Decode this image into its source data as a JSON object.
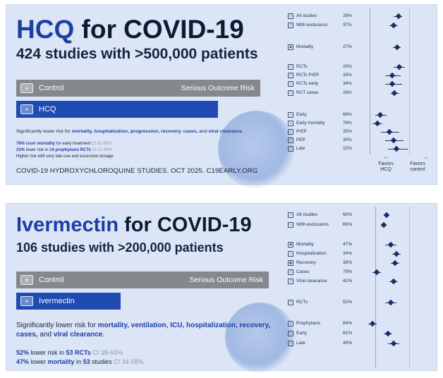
{
  "hcq_card": {
    "title_drug": "HCQ",
    "title_rest": "for COVID-19",
    "subtitle": "424 studies with >500,000 patients",
    "control_label": "Control",
    "drug_label": "HCQ",
    "risk_label": "Serious Outcome Risk",
    "sig_prefix": "Significantly lower risk for ",
    "sig_items": "mortality, hospitalization, progression, recovery, cases,",
    "sig_and": " and ",
    "sig_last": "viral clearance",
    "sig_end": ".",
    "stat1_pct": "76%",
    "stat1_text": " lower ",
    "stat1_bold": "mortality",
    "stat1_rest": " for early treatment ",
    "stat1_ci": "CI 61-85%",
    "stat2_pct": "33%",
    "stat2_text": " lower risk in ",
    "stat2_bold": "14 prophylaxis RCTs",
    "stat2_ci": " CI 12-49%",
    "stat3": "Higher risk with very late use and excessive dosage",
    "footer": "COVID-19 HYDROXYCHLOROQUINE STUDIES. OCT 2025. C19EARLY.ORG",
    "rows": [
      {
        "label": "All studies",
        "pct": "28%"
      },
      {
        "label": "With exclusions",
        "pct": "37%"
      },
      {
        "label": "Mortality",
        "pct": "27%"
      },
      {
        "label": "RCTs",
        "pct": "20%"
      },
      {
        "label": "RCTs PrEP",
        "pct": "33%"
      },
      {
        "label": "RCTs early",
        "pct": "34%"
      },
      {
        "label": "RCT cases",
        "pct": "26%"
      },
      {
        "label": "Early",
        "pct": "66%"
      },
      {
        "label": "Early mortality",
        "pct": "76%"
      },
      {
        "label": "PrEP",
        "pct": "35%"
      },
      {
        "label": "PEP",
        "pct": "30%"
      },
      {
        "label": "Late",
        "pct": "22%"
      }
    ],
    "favors_drug": "Favors HCQ",
    "favors_control": "Favors control"
  },
  "ivm_card": {
    "title_drug": "Ivermectin",
    "title_rest": "for COVID-19",
    "subtitle": "106 studies with >200,000 patients",
    "control_label": "Control",
    "drug_label": "Ivermectin",
    "risk_label": "Serious Outcome Risk",
    "sig_prefix": "Significantly lower risk for ",
    "sig_items": "mortality, ventilation, ICU, hospitalization, recovery, cases,",
    "sig_and": " and ",
    "sig_last": "viral clearance",
    "sig_end": ".",
    "stat1_pct": "52%",
    "stat1_text": " lower risk in ",
    "stat1_bold": "53 RCTs",
    "stat1_ci": " CI 38-63%",
    "stat2_pct": "47%",
    "stat2_text": " lower ",
    "stat2_bold": "mortality",
    "stat2_mid": " in ",
    "stat2_bold2": "53",
    "stat2_rest": " studies ",
    "stat2_ci": "CI 34-58%",
    "rows": [
      {
        "label": "All studies",
        "pct": "60%"
      },
      {
        "label": "With exclusions",
        "pct": "65%"
      },
      {
        "label": "Mortality",
        "pct": "47%"
      },
      {
        "label": "Hospitalization",
        "pct": "34%"
      },
      {
        "label": "Recovery",
        "pct": "39%"
      },
      {
        "label": "Cases",
        "pct": "79%"
      },
      {
        "label": "Viral clearance",
        "pct": "42%"
      },
      {
        "label": "RCTs",
        "pct": "52%"
      },
      {
        "label": "Prophylaxis",
        "pct": "84%"
      },
      {
        "label": "Early",
        "pct": "61%"
      },
      {
        "label": "Late",
        "pct": "40%"
      }
    ]
  },
  "colors": {
    "card_bg": "#dbe5f6",
    "drug_blue": "#1f4bb3",
    "control_gray": "#85888c",
    "title_blue": "#1d3fa4"
  }
}
